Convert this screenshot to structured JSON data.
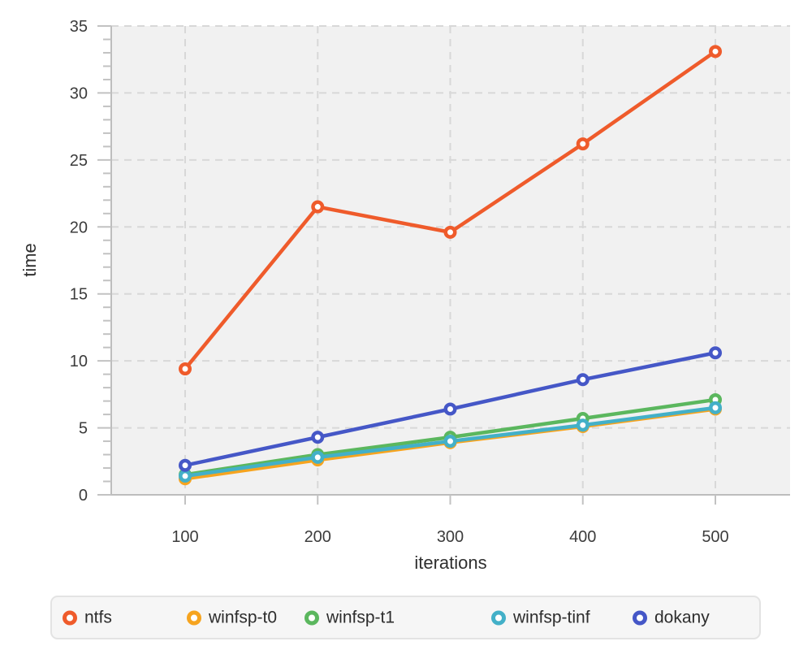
{
  "chart_data": {
    "type": "line",
    "title": "",
    "xlabel": "iterations",
    "ylabel": "time",
    "x": [
      100,
      200,
      300,
      400,
      500
    ],
    "xticks": [
      100,
      200,
      300,
      400,
      500
    ],
    "yticks": [
      0,
      5,
      10,
      15,
      20,
      25,
      30,
      35
    ],
    "ylim": [
      0,
      35
    ],
    "y_minor_tick_step": 1,
    "grid": "dashed",
    "plot_background": "#f1f1f1",
    "legend_position": "bottom",
    "series": [
      {
        "name": "ntfs",
        "color": "#ef5b2b",
        "values": [
          9.4,
          21.5,
          19.6,
          26.2,
          33.1
        ]
      },
      {
        "name": "winfsp-t0",
        "color": "#f6a41f",
        "values": [
          1.2,
          2.6,
          3.9,
          5.1,
          6.4
        ]
      },
      {
        "name": "winfsp-t1",
        "color": "#5bb75e",
        "values": [
          1.5,
          3.0,
          4.3,
          5.7,
          7.1
        ]
      },
      {
        "name": "winfsp-tinf",
        "color": "#43b0c8",
        "values": [
          1.4,
          2.8,
          4.0,
          5.2,
          6.5
        ]
      },
      {
        "name": "dokany",
        "color": "#4557c7",
        "values": [
          2.2,
          4.3,
          6.4,
          8.6,
          10.6
        ]
      }
    ]
  }
}
